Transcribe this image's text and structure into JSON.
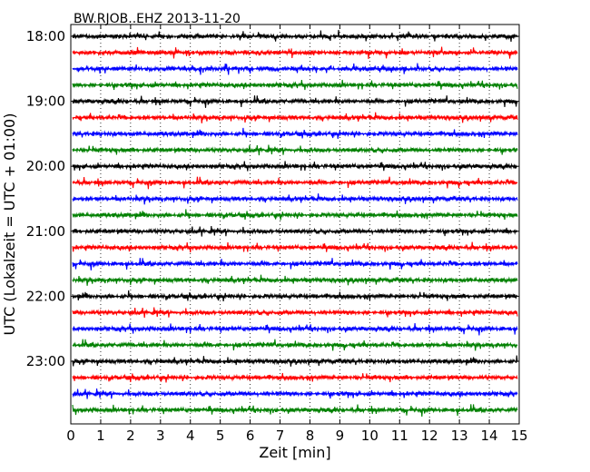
{
  "chart_data": {
    "type": "line",
    "title": "BW.RJOB..EHZ 2013-11-20",
    "xlabel": "Zeit  [min]",
    "ylabel": "UTC (Lokalzeit = UTC + 01:00)",
    "xlim": [
      0,
      15
    ],
    "x_ticks": [
      "0",
      "1",
      "2",
      "3",
      "4",
      "5",
      "6",
      "7",
      "8",
      "9",
      "10",
      "11",
      "12",
      "13",
      "14",
      "15"
    ],
    "y_tick_labels": [
      "18:00",
      "19:00",
      "20:00",
      "21:00",
      "22:00",
      "23:00"
    ],
    "grid": "vertical dotted lines at each minute",
    "trace_interval_min": 15,
    "trace_start": "18:00",
    "trace_count": 24,
    "trace_colors": [
      "#000000",
      "#ff0000",
      "#0000ff",
      "#008000"
    ]
  }
}
